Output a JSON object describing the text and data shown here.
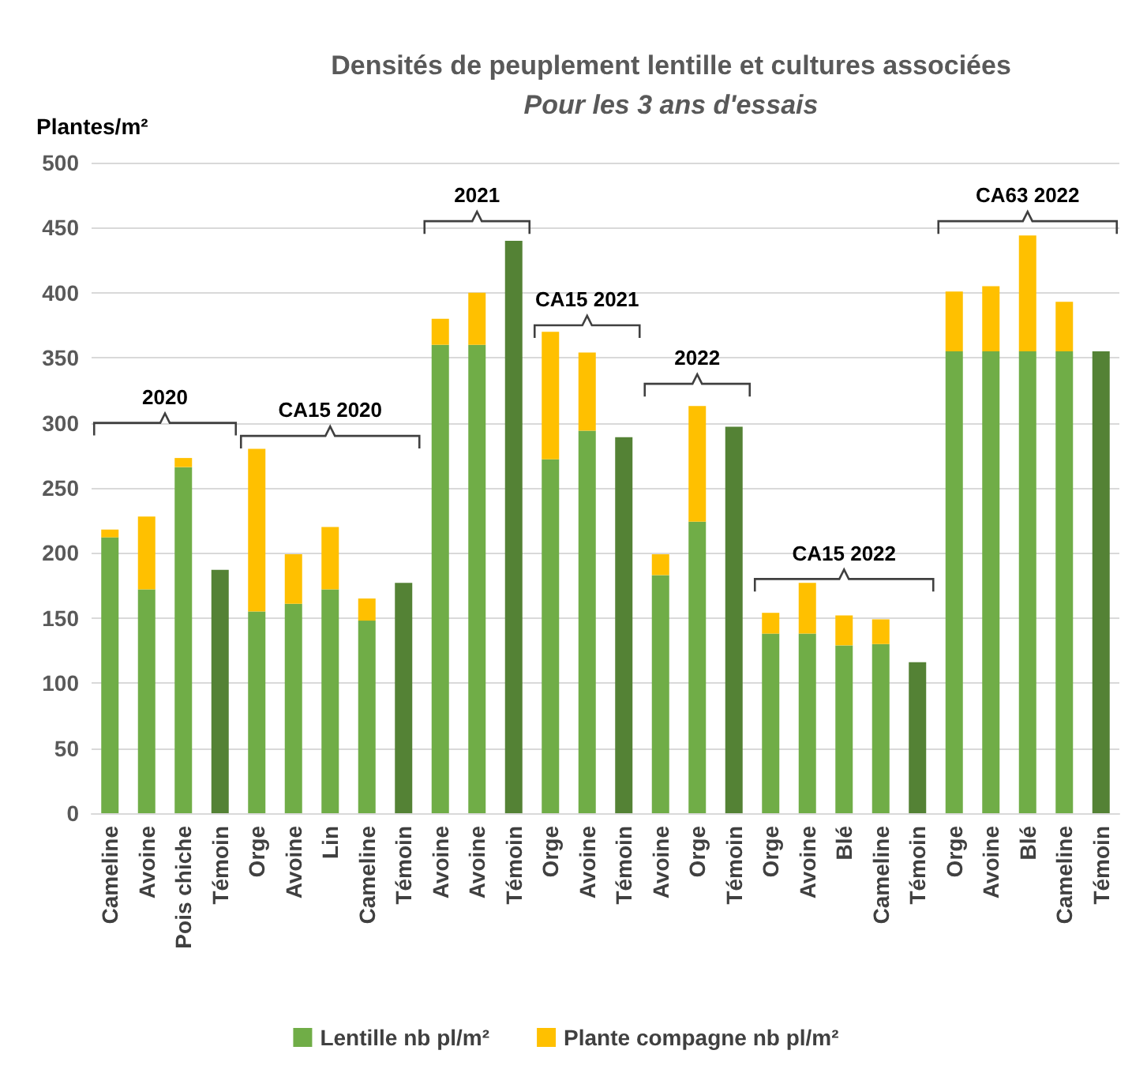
{
  "chart_data": {
    "type": "bar",
    "title": "Densités de peuplement lentille et cultures associées",
    "subtitle": "Pour les 3 ans d'essais",
    "ylabel": "Plantes/m²",
    "categories": [
      "Cameline",
      "Avoine",
      "Pois chiche",
      "Témoin",
      "Orge",
      "Avoine",
      "Lin",
      "Cameline",
      "Témoin",
      "Avoine",
      "Avoine",
      "Témoin",
      "Orge",
      "Avoine",
      "Témoin",
      "Avoine",
      "Orge",
      "Témoin",
      "Orge",
      "Avoine",
      "Blé",
      "Cameline",
      "Témoin",
      "Orge",
      "Avoine",
      "Blé",
      "Cameline",
      "Témoin"
    ],
    "stacked": true,
    "series": [
      {
        "name": "Lentille nb pl/m²",
        "color": "#70ad47",
        "colors": [
          "#70ad47",
          "#70ad47",
          "#70ad47",
          "#548235",
          "#70ad47",
          "#70ad47",
          "#70ad47",
          "#70ad47",
          "#548235",
          "#70ad47",
          "#70ad47",
          "#548235",
          "#70ad47",
          "#70ad47",
          "#548235",
          "#70ad47",
          "#70ad47",
          "#548235",
          "#70ad47",
          "#70ad47",
          "#70ad47",
          "#70ad47",
          "#548235",
          "#70ad47",
          "#70ad47",
          "#70ad47",
          "#70ad47",
          "#548235"
        ],
        "values": [
          212,
          172,
          266,
          187,
          155,
          161,
          172,
          148,
          177,
          360,
          360,
          440,
          272,
          294,
          289,
          183,
          224,
          297,
          138,
          138,
          129,
          130,
          116,
          355,
          355,
          355,
          355,
          355
        ]
      },
      {
        "name": "Plante compagne nb pl/m²",
        "color": "#ffc000",
        "values": [
          6,
          56,
          7,
          null,
          125,
          38,
          48,
          17,
          null,
          20,
          40,
          null,
          98,
          60,
          null,
          16,
          89,
          null,
          16,
          39,
          23,
          19,
          null,
          46,
          50,
          89,
          38,
          null
        ]
      }
    ],
    "annotations": [
      "2020",
      "CA15 2020",
      "2021",
      "CA15 2021",
      "2022",
      "CA15 2022",
      "CA63 2022"
    ],
    "ylim": [
      0,
      500
    ],
    "yticks": [
      0,
      50,
      100,
      150,
      200,
      250,
      300,
      350,
      400,
      450,
      500
    ],
    "grid": "y",
    "legend": "bottom"
  }
}
